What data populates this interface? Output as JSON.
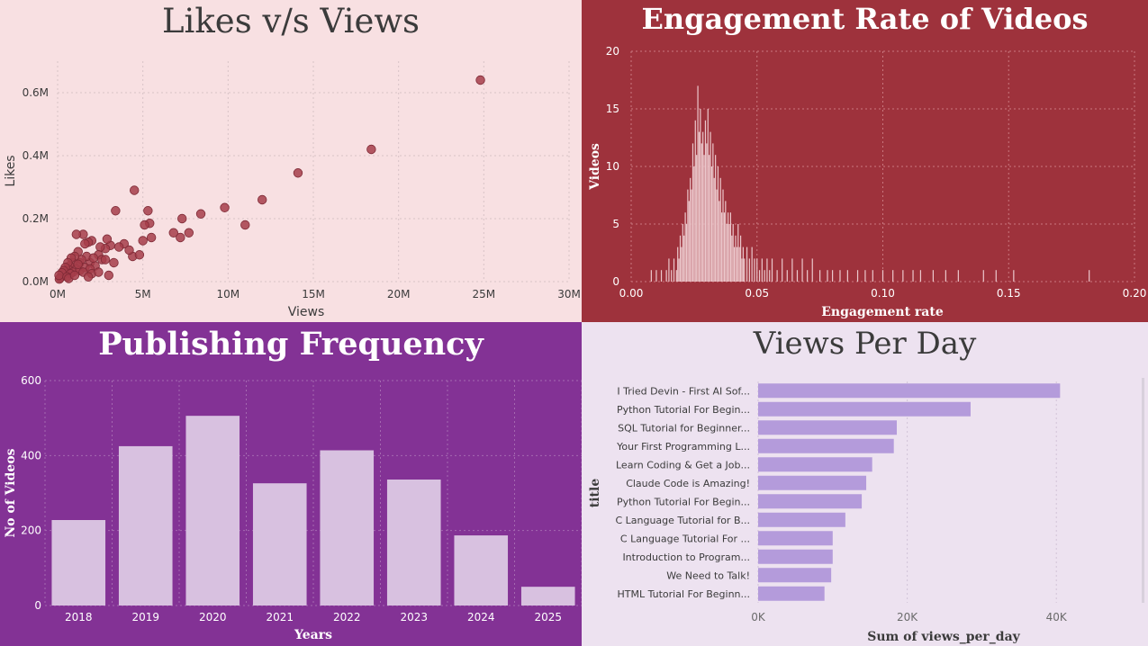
{
  "theme": {
    "p1_bg": "#f8e0e2",
    "p1_point": "#a63d4a",
    "p1_text": "#3b3b3b",
    "p2_bg": "#9e323c",
    "p2_bar": "#ecc8cc",
    "p2_text": "#ffffff",
    "p3_bg": "#833295",
    "p3_bar": "#d8c1e0",
    "p3_text": "#ffffff",
    "p4_bg": "#ede2f0",
    "p4_bar": "#b49bdb",
    "p4_text": "#3b3b3b"
  },
  "chart_data": [
    {
      "type": "scatter",
      "title": "Likes v/s Views",
      "xlabel": "Views",
      "ylabel": "Likes",
      "xlim": [
        0,
        30000000
      ],
      "ylim": [
        0,
        700000
      ],
      "x_ticks": [
        0,
        5000000,
        10000000,
        15000000,
        20000000,
        25000000,
        30000000
      ],
      "x_tick_labels": [
        "0M",
        "5M",
        "10M",
        "15M",
        "20M",
        "25M",
        "30M"
      ],
      "y_ticks": [
        0,
        200000,
        400000,
        600000
      ],
      "y_tick_labels": [
        "0.0M",
        "0.2M",
        "0.4M",
        "0.6M"
      ],
      "grid": true,
      "points": [
        [
          24800000,
          640000
        ],
        [
          18400000,
          420000
        ],
        [
          14100000,
          345000
        ],
        [
          12000000,
          260000
        ],
        [
          11000000,
          180000
        ],
        [
          9800000,
          235000
        ],
        [
          8400000,
          215000
        ],
        [
          7300000,
          200000
        ],
        [
          7700000,
          155000
        ],
        [
          7200000,
          140000
        ],
        [
          6800000,
          155000
        ],
        [
          4500000,
          290000
        ],
        [
          3400000,
          225000
        ],
        [
          5300000,
          225000
        ],
        [
          5400000,
          185000
        ],
        [
          5100000,
          180000
        ],
        [
          4400000,
          80000
        ],
        [
          4800000,
          85000
        ],
        [
          5500000,
          140000
        ],
        [
          5000000,
          130000
        ],
        [
          3900000,
          120000
        ],
        [
          3100000,
          115000
        ],
        [
          2900000,
          135000
        ],
        [
          3600000,
          110000
        ],
        [
          2800000,
          105000
        ],
        [
          2500000,
          110000
        ],
        [
          2000000,
          130000
        ],
        [
          1800000,
          125000
        ],
        [
          1500000,
          150000
        ],
        [
          1600000,
          120000
        ],
        [
          1200000,
          95000
        ],
        [
          1100000,
          150000
        ],
        [
          2400000,
          85000
        ],
        [
          2600000,
          70000
        ],
        [
          1300000,
          60000
        ],
        [
          4200000,
          100000
        ],
        [
          1900000,
          60000
        ],
        [
          1700000,
          80000
        ],
        [
          1400000,
          70000
        ],
        [
          2200000,
          50000
        ],
        [
          2100000,
          75000
        ],
        [
          1000000,
          80000
        ],
        [
          900000,
          60000
        ],
        [
          800000,
          75000
        ],
        [
          700000,
          50000
        ],
        [
          1100000,
          40000
        ],
        [
          600000,
          40000
        ],
        [
          500000,
          30000
        ],
        [
          400000,
          25000
        ],
        [
          300000,
          20000
        ],
        [
          200000,
          15000
        ],
        [
          900000,
          30000
        ],
        [
          1300000,
          35000
        ],
        [
          1600000,
          45000
        ],
        [
          1900000,
          40000
        ],
        [
          600000,
          60000
        ],
        [
          450000,
          45000
        ],
        [
          350000,
          35000
        ],
        [
          250000,
          28000
        ],
        [
          150000,
          12000
        ],
        [
          100000,
          8000
        ],
        [
          80000,
          20000
        ],
        [
          1200000,
          55000
        ],
        [
          2800000,
          70000
        ],
        [
          3300000,
          60000
        ],
        [
          1500000,
          30000
        ],
        [
          750000,
          25000
        ],
        [
          550000,
          15000
        ],
        [
          650000,
          10000
        ],
        [
          1000000,
          20000
        ],
        [
          2000000,
          25000
        ],
        [
          3000000,
          20000
        ],
        [
          1800000,
          15000
        ],
        [
          2400000,
          30000
        ]
      ]
    },
    {
      "type": "bar",
      "title": "Engagement Rate of Videos",
      "xlabel": "Engagement rate",
      "ylabel": "Videos",
      "xlim": [
        0,
        0.2
      ],
      "ylim": [
        0,
        20
      ],
      "x_ticks": [
        0,
        0.05,
        0.1,
        0.15,
        0.2
      ],
      "x_tick_labels": [
        "0.00",
        "0.05",
        "0.10",
        "0.15",
        "0.20"
      ],
      "y_ticks": [
        0,
        5,
        10,
        15,
        20
      ],
      "y_tick_labels": [
        "0",
        "5",
        "10",
        "15",
        "20"
      ],
      "grid": true,
      "bars": [
        [
          0.008,
          1
        ],
        [
          0.01,
          1
        ],
        [
          0.012,
          1
        ],
        [
          0.014,
          1
        ],
        [
          0.015,
          2
        ],
        [
          0.016,
          1
        ],
        [
          0.017,
          2
        ],
        [
          0.018,
          1
        ],
        [
          0.0185,
          3
        ],
        [
          0.019,
          2
        ],
        [
          0.0195,
          4
        ],
        [
          0.02,
          3
        ],
        [
          0.0205,
          5
        ],
        [
          0.021,
          4
        ],
        [
          0.0215,
          6
        ],
        [
          0.022,
          5
        ],
        [
          0.0225,
          8
        ],
        [
          0.023,
          7
        ],
        [
          0.0235,
          9
        ],
        [
          0.024,
          8
        ],
        [
          0.0245,
          12
        ],
        [
          0.025,
          10
        ],
        [
          0.0255,
          14
        ],
        [
          0.026,
          11
        ],
        [
          0.0265,
          17
        ],
        [
          0.027,
          13
        ],
        [
          0.0275,
          15
        ],
        [
          0.028,
          12
        ],
        [
          0.0285,
          13
        ],
        [
          0.029,
          11
        ],
        [
          0.0295,
          14
        ],
        [
          0.03,
          12
        ],
        [
          0.0305,
          15
        ],
        [
          0.031,
          11
        ],
        [
          0.0315,
          13
        ],
        [
          0.032,
          10
        ],
        [
          0.0325,
          12
        ],
        [
          0.033,
          9
        ],
        [
          0.0335,
          11
        ],
        [
          0.034,
          8
        ],
        [
          0.0345,
          10
        ],
        [
          0.035,
          7
        ],
        [
          0.0355,
          9
        ],
        [
          0.036,
          6
        ],
        [
          0.0365,
          8
        ],
        [
          0.037,
          6
        ],
        [
          0.0375,
          7
        ],
        [
          0.038,
          5
        ],
        [
          0.0385,
          6
        ],
        [
          0.039,
          5
        ],
        [
          0.0395,
          6
        ],
        [
          0.04,
          4
        ],
        [
          0.0405,
          5
        ],
        [
          0.041,
          3
        ],
        [
          0.0415,
          4
        ],
        [
          0.042,
          3
        ],
        [
          0.0425,
          5
        ],
        [
          0.043,
          3
        ],
        [
          0.0435,
          4
        ],
        [
          0.044,
          2
        ],
        [
          0.0445,
          3
        ],
        [
          0.045,
          2
        ],
        [
          0.046,
          3
        ],
        [
          0.047,
          2
        ],
        [
          0.048,
          3
        ],
        [
          0.049,
          2
        ],
        [
          0.05,
          2
        ],
        [
          0.051,
          1
        ],
        [
          0.052,
          2
        ],
        [
          0.053,
          1
        ],
        [
          0.054,
          2
        ],
        [
          0.055,
          1
        ],
        [
          0.056,
          2
        ],
        [
          0.058,
          1
        ],
        [
          0.06,
          2
        ],
        [
          0.062,
          1
        ],
        [
          0.064,
          2
        ],
        [
          0.066,
          1
        ],
        [
          0.068,
          2
        ],
        [
          0.07,
          1
        ],
        [
          0.072,
          2
        ],
        [
          0.075,
          1
        ],
        [
          0.078,
          1
        ],
        [
          0.08,
          1
        ],
        [
          0.083,
          1
        ],
        [
          0.086,
          1
        ],
        [
          0.09,
          1
        ],
        [
          0.093,
          1
        ],
        [
          0.096,
          1
        ],
        [
          0.1,
          1
        ],
        [
          0.104,
          1
        ],
        [
          0.108,
          1
        ],
        [
          0.112,
          1
        ],
        [
          0.115,
          1
        ],
        [
          0.12,
          1
        ],
        [
          0.125,
          1
        ],
        [
          0.13,
          1
        ],
        [
          0.14,
          1
        ],
        [
          0.145,
          1
        ],
        [
          0.152,
          1
        ],
        [
          0.182,
          1
        ]
      ]
    },
    {
      "type": "bar",
      "title": "Publishing Frequency",
      "xlabel": "Years",
      "ylabel": "No of Videos",
      "ylim": [
        0,
        600
      ],
      "y_ticks": [
        0,
        200,
        400,
        600
      ],
      "y_tick_labels": [
        "0",
        "200",
        "400",
        "600"
      ],
      "grid": true,
      "categories": [
        "2018",
        "2019",
        "2020",
        "2021",
        "2022",
        "2023",
        "2024",
        "2025"
      ],
      "values": [
        228,
        425,
        506,
        326,
        414,
        336,
        187,
        50
      ]
    },
    {
      "type": "bar",
      "orientation": "horizontal",
      "title": "Views Per Day",
      "xlabel": "Sum of views_per_day",
      "ylabel": "title",
      "xlim": [
        0,
        50000
      ],
      "x_ticks": [
        0,
        20000,
        40000
      ],
      "x_tick_labels": [
        "0K",
        "20K",
        "40K"
      ],
      "grid": true,
      "categories": [
        "I Tried Devin - First AI Sof...",
        "Python Tutorial For Begin...",
        "SQL Tutorial for Beginner...",
        "Your First Programming L...",
        "Learn Coding & Get a Job...",
        "Claude Code is Amazing!",
        "Python Tutorial For Begin...",
        "C Language Tutorial for B...",
        "C Language Tutorial For ...",
        "Introduction to Program...",
        "We Need to Talk!",
        "HTML Tutorial For Beginn..."
      ],
      "values": [
        40500,
        28500,
        18600,
        18200,
        15300,
        14500,
        13900,
        11700,
        10000,
        10000,
        9800,
        8900
      ]
    }
  ]
}
